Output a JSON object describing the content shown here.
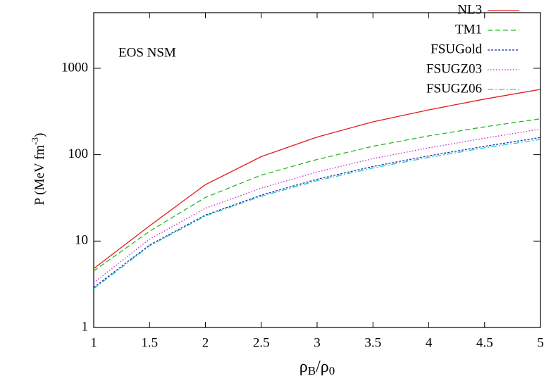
{
  "chart_data": {
    "type": "line",
    "annotation": "EOS NSM",
    "xlabel": {
      "main": "ρ",
      "sub1": "B",
      "mid": "/ρ",
      "sub2": "0"
    },
    "ylabel": {
      "main": "P (MeV fm",
      "sup": "-3",
      "end": ")"
    },
    "x": [
      1,
      1.5,
      2,
      2.5,
      3,
      3.5,
      4,
      4.5,
      5
    ],
    "series": [
      {
        "name": "NL3",
        "color": "#e31a1c",
        "style": "solid",
        "values": [
          4.8,
          15,
          45,
          95,
          160,
          240,
          330,
          440,
          570
        ]
      },
      {
        "name": "TM1",
        "color": "#22bb22",
        "style": "dashed",
        "values": [
          4.5,
          13,
          32,
          58,
          88,
          125,
          165,
          210,
          260
        ]
      },
      {
        "name": "FSUGold",
        "color": "#1f2fa8",
        "style": "shortdash",
        "values": [
          2.9,
          9,
          20,
          34,
          52,
          73,
          97,
          125,
          158
        ]
      },
      {
        "name": "FSUGZ03",
        "color": "#cc22cc",
        "style": "dotted",
        "values": [
          3.3,
          10.5,
          24,
          41,
          63,
          90,
          120,
          155,
          198
        ]
      },
      {
        "name": "FSUGZ06",
        "color": "#22cccc",
        "style": "dashdot",
        "values": [
          2.8,
          8.8,
          19.5,
          33,
          50,
          70,
          93,
          120,
          150
        ]
      }
    ],
    "xlim": [
      1,
      5
    ],
    "xticks": [
      1,
      1.5,
      2,
      2.5,
      3,
      3.5,
      4,
      4.5,
      5
    ],
    "ylim": [
      1,
      4400
    ],
    "yticks": [
      1,
      10,
      100,
      1000
    ],
    "ylog": true,
    "legend": "top-right"
  }
}
